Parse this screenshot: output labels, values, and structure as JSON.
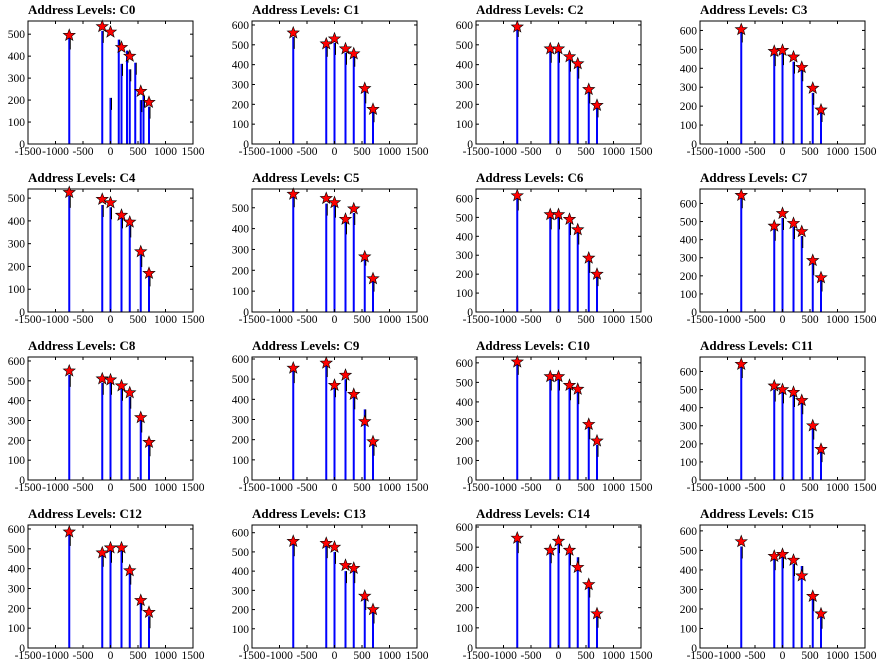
{
  "figure": {
    "x_ticks": [
      -1500,
      -1000,
      -500,
      0,
      500,
      1000,
      1500
    ],
    "xlim": [
      -1500,
      1500
    ],
    "bar_color": "#0000ff",
    "tail_color": "#000000",
    "marker_color": "#ff0000",
    "marker": "red-star"
  },
  "chart_data": [
    {
      "type": "bar",
      "title": "Address Levels: C0",
      "ylim": [
        0,
        560
      ],
      "y_ticks": [
        0,
        100,
        200,
        300,
        400,
        500
      ],
      "x": [
        -750,
        -150,
        0,
        150,
        200,
        300,
        350,
        450,
        550,
        600,
        700
      ],
      "values": [
        485,
        515,
        210,
        475,
        365,
        425,
        340,
        370,
        200,
        220,
        170
      ],
      "stars": {
        "x": [
          -750,
          -150,
          0,
          200,
          350,
          550,
          700
        ],
        "y": [
          495,
          535,
          510,
          440,
          400,
          240,
          190
        ]
      }
    },
    {
      "type": "bar",
      "title": "Address Levels: C1",
      "ylim": [
        0,
        620
      ],
      "y_ticks": [
        0,
        100,
        200,
        300,
        400,
        500,
        600
      ],
      "x": [
        -750,
        -150,
        0,
        200,
        350,
        550,
        700
      ],
      "values": [
        540,
        500,
        510,
        460,
        450,
        265,
        170
      ],
      "stars": {
        "x": [
          -750,
          -150,
          0,
          200,
          350,
          550,
          700
        ],
        "y": [
          560,
          505,
          530,
          480,
          455,
          280,
          175
        ]
      }
    },
    {
      "type": "bar",
      "title": "Address Levels: C2",
      "ylim": [
        0,
        620
      ],
      "y_ticks": [
        0,
        100,
        200,
        300,
        400,
        500,
        600
      ],
      "x": [
        -750,
        -150,
        0,
        200,
        350,
        550,
        700
      ],
      "values": [
        600,
        470,
        470,
        425,
        390,
        265,
        195
      ],
      "stars": {
        "x": [
          -750,
          -150,
          0,
          200,
          350,
          550,
          700
        ],
        "y": [
          590,
          480,
          480,
          440,
          405,
          275,
          195
        ]
      }
    },
    {
      "type": "bar",
      "title": "Address Levels: C3",
      "ylim": [
        0,
        650
      ],
      "y_ticks": [
        0,
        100,
        200,
        300,
        400,
        500,
        600
      ],
      "x": [
        -750,
        -150,
        0,
        200,
        350,
        550,
        700
      ],
      "values": [
        600,
        475,
        480,
        435,
        395,
        270,
        180
      ],
      "stars": {
        "x": [
          -750,
          -150,
          0,
          200,
          350,
          550,
          700
        ],
        "y": [
          605,
          490,
          495,
          460,
          405,
          295,
          180
        ]
      }
    },
    {
      "type": "bar",
      "title": "Address Levels: C4",
      "ylim": [
        0,
        540
      ],
      "y_ticks": [
        0,
        100,
        200,
        300,
        400,
        500
      ],
      "x": [
        -750,
        -150,
        0,
        200,
        350,
        550,
        700
      ],
      "values": [
        510,
        470,
        460,
        420,
        380,
        250,
        165
      ],
      "stars": {
        "x": [
          -750,
          -150,
          0,
          200,
          350,
          550,
          700
        ],
        "y": [
          525,
          495,
          480,
          425,
          395,
          265,
          170
        ]
      }
    },
    {
      "type": "bar",
      "title": "Address Levels: C5",
      "ylim": [
        0,
        590
      ],
      "y_ticks": [
        0,
        100,
        200,
        300,
        400,
        500
      ],
      "x": [
        -750,
        -150,
        0,
        200,
        350,
        550,
        700
      ],
      "values": [
        560,
        520,
        510,
        430,
        475,
        280,
        155
      ],
      "stars": {
        "x": [
          -750,
          -150,
          0,
          200,
          350,
          550,
          700
        ],
        "y": [
          565,
          545,
          525,
          445,
          495,
          265,
          160
        ]
      }
    },
    {
      "type": "bar",
      "title": "Address Levels: C6",
      "ylim": [
        0,
        650
      ],
      "y_ticks": [
        0,
        100,
        200,
        300,
        400,
        500,
        600
      ],
      "x": [
        -750,
        -150,
        0,
        200,
        350,
        550,
        700
      ],
      "values": [
        600,
        500,
        500,
        470,
        420,
        270,
        200
      ],
      "stars": {
        "x": [
          -750,
          -150,
          0,
          200,
          350,
          550,
          700
        ],
        "y": [
          615,
          515,
          515,
          490,
          435,
          285,
          200
        ]
      }
    },
    {
      "type": "bar",
      "title": "Address Levels: C7",
      "ylim": [
        0,
        680
      ],
      "y_ticks": [
        0,
        100,
        200,
        300,
        400,
        500,
        600
      ],
      "x": [
        -750,
        -150,
        0,
        200,
        350,
        550,
        700
      ],
      "values": [
        640,
        460,
        520,
        470,
        420,
        270,
        180
      ],
      "stars": {
        "x": [
          -750,
          -150,
          0,
          200,
          350,
          550,
          700
        ],
        "y": [
          645,
          475,
          545,
          490,
          445,
          285,
          190
        ]
      }
    },
    {
      "type": "bar",
      "title": "Address Levels: C8",
      "ylim": [
        0,
        620
      ],
      "y_ticks": [
        0,
        100,
        200,
        300,
        400,
        500,
        600
      ],
      "x": [
        -750,
        -150,
        0,
        200,
        350,
        550,
        700
      ],
      "values": [
        530,
        490,
        490,
        460,
        420,
        300,
        180
      ],
      "stars": {
        "x": [
          -750,
          -150,
          0,
          200,
          350,
          550,
          700
        ],
        "y": [
          550,
          510,
          505,
          475,
          440,
          315,
          190
        ]
      }
    },
    {
      "type": "bar",
      "title": "Address Levels: C9",
      "ylim": [
        0,
        610
      ],
      "y_ticks": [
        0,
        100,
        200,
        300,
        400,
        500,
        600
      ],
      "x": [
        -750,
        -150,
        0,
        200,
        350,
        550,
        700
      ],
      "values": [
        540,
        570,
        470,
        500,
        410,
        350,
        180
      ],
      "stars": {
        "x": [
          -750,
          -150,
          0,
          200,
          350,
          550,
          700
        ],
        "y": [
          555,
          580,
          470,
          520,
          425,
          290,
          190
        ]
      }
    },
    {
      "type": "bar",
      "title": "Address Levels: C10",
      "ylim": [
        0,
        630
      ],
      "y_ticks": [
        0,
        100,
        200,
        300,
        400,
        500,
        600
      ],
      "x": [
        -750,
        -150,
        0,
        200,
        350,
        550,
        700
      ],
      "values": [
        600,
        520,
        520,
        470,
        450,
        270,
        180
      ],
      "stars": {
        "x": [
          -750,
          -150,
          0,
          200,
          350,
          550,
          700
        ],
        "y": [
          605,
          530,
          530,
          485,
          465,
          285,
          200
        ]
      }
    },
    {
      "type": "bar",
      "title": "Address Levels: C11",
      "ylim": [
        0,
        680
      ],
      "y_ticks": [
        0,
        100,
        200,
        300,
        400,
        500,
        600
      ],
      "x": [
        -750,
        -150,
        0,
        200,
        350,
        550,
        700
      ],
      "values": [
        630,
        500,
        490,
        470,
        430,
        290,
        165
      ],
      "stars": {
        "x": [
          -750,
          -150,
          0,
          200,
          350,
          550,
          700
        ],
        "y": [
          640,
          520,
          500,
          485,
          440,
          300,
          170
        ]
      }
    },
    {
      "type": "bar",
      "title": "Address Levels: C12",
      "ylim": [
        0,
        620
      ],
      "y_ticks": [
        0,
        100,
        200,
        300,
        400,
        500,
        600
      ],
      "x": [
        -750,
        -150,
        0,
        200,
        350,
        550,
        700
      ],
      "values": [
        575,
        470,
        490,
        490,
        380,
        250,
        160
      ],
      "stars": {
        "x": [
          -750,
          -150,
          0,
          200,
          350,
          550,
          700
        ],
        "y": [
          585,
          480,
          505,
          505,
          390,
          240,
          180
        ]
      }
    },
    {
      "type": "bar",
      "title": "Address Levels: C13",
      "ylim": [
        0,
        640
      ],
      "y_ticks": [
        0,
        100,
        200,
        300,
        400,
        500,
        600
      ],
      "x": [
        -750,
        -150,
        0,
        200,
        350,
        550,
        700
      ],
      "values": [
        540,
        530,
        500,
        400,
        400,
        260,
        190
      ],
      "stars": {
        "x": [
          -750,
          -150,
          0,
          200,
          350,
          550,
          700
        ],
        "y": [
          555,
          545,
          525,
          430,
          415,
          270,
          200
        ]
      }
    },
    {
      "type": "bar",
      "title": "Address Levels: C14",
      "ylim": [
        0,
        610
      ],
      "y_ticks": [
        0,
        100,
        200,
        300,
        400,
        500,
        600
      ],
      "x": [
        -750,
        -150,
        0,
        200,
        350,
        550,
        700
      ],
      "values": [
        530,
        480,
        530,
        470,
        450,
        310,
        160
      ],
      "stars": {
        "x": [
          -750,
          -150,
          0,
          200,
          350,
          550,
          700
        ],
        "y": [
          545,
          485,
          530,
          485,
          400,
          315,
          170
        ]
      }
    },
    {
      "type": "bar",
      "title": "Address Levels: C15",
      "ylim": [
        0,
        630
      ],
      "y_ticks": [
        0,
        100,
        200,
        300,
        400,
        500,
        600
      ],
      "x": [
        -750,
        -150,
        0,
        200,
        350,
        550,
        700
      ],
      "values": [
        520,
        460,
        470,
        430,
        420,
        250,
        160
      ],
      "stars": {
        "x": [
          -750,
          -150,
          0,
          200,
          350,
          550,
          700
        ],
        "y": [
          545,
          470,
          480,
          450,
          370,
          265,
          175
        ]
      }
    }
  ]
}
